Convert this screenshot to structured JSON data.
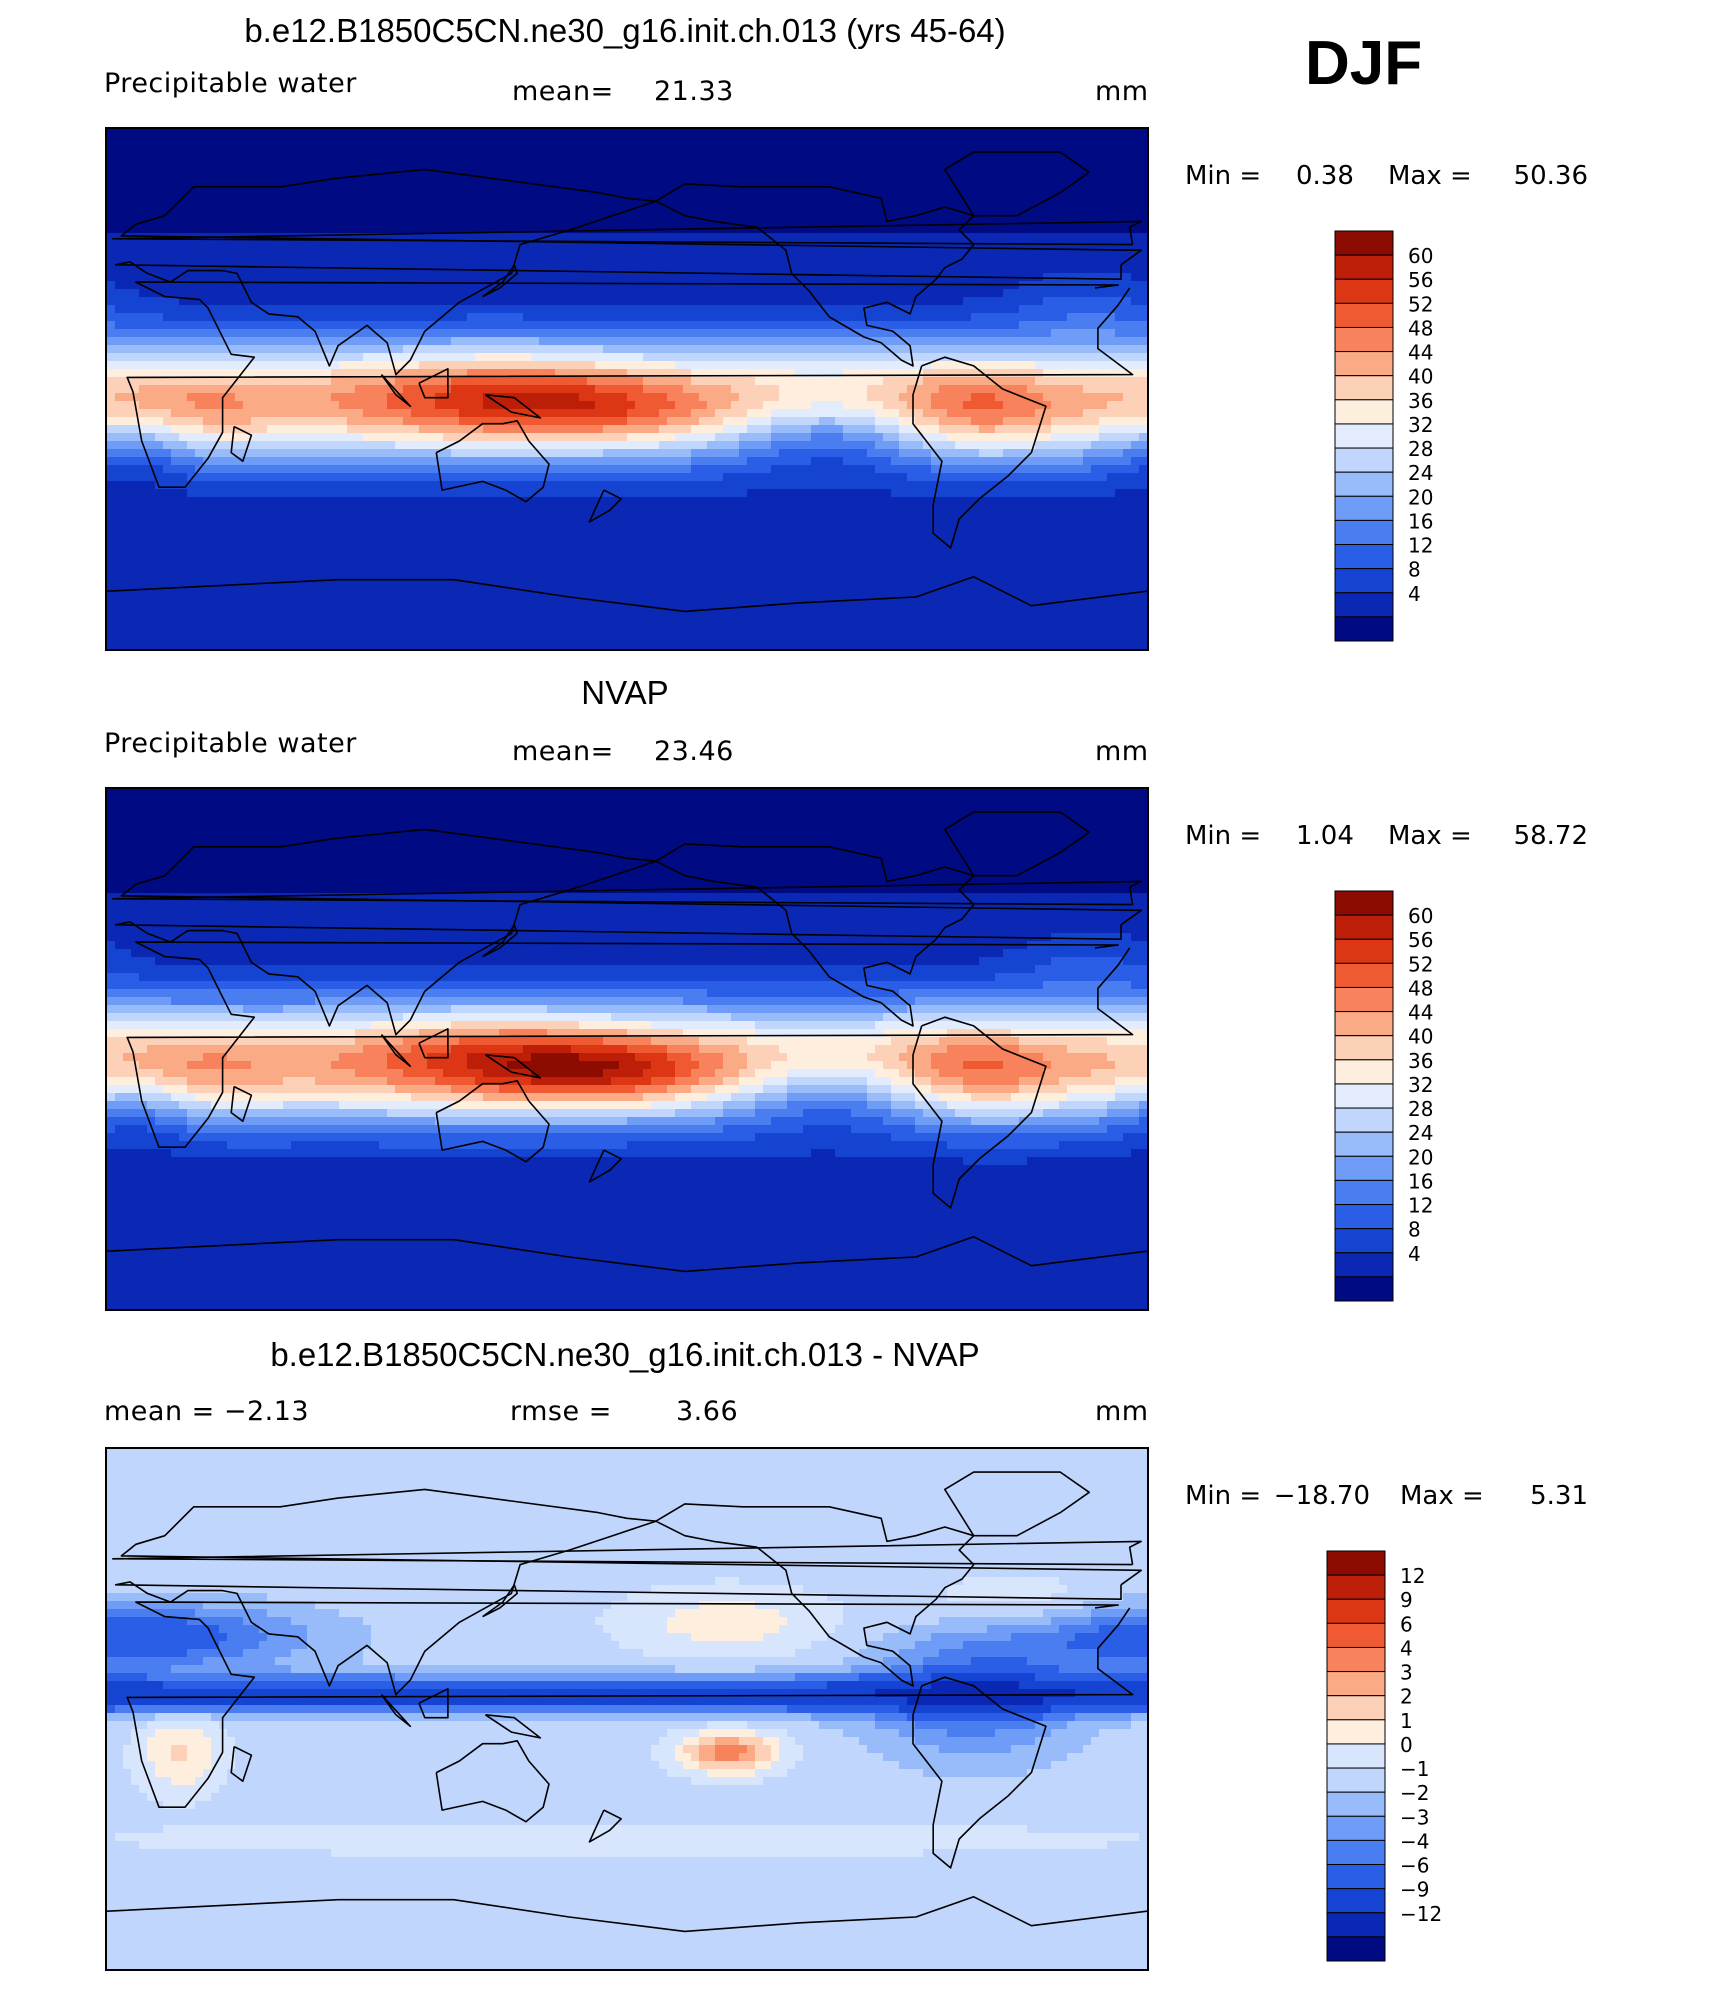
{
  "season": "DJF",
  "colors": {
    "pw_levels": [
      "#000a82",
      "#0a28b4",
      "#1644d2",
      "#2a5ee6",
      "#4a7ef0",
      "#6e9cf6",
      "#98bcfa",
      "#c0d6fc",
      "#e2ecfd",
      "#fdeede",
      "#fdd0b8",
      "#fbaa86",
      "#f7825c",
      "#ef5a32",
      "#dc3614",
      "#bc1e08",
      "#8c0c02"
    ],
    "diff_levels": [
      "#000a82",
      "#0a28b4",
      "#1644d2",
      "#2a5ee6",
      "#4a7ef0",
      "#6e9cf6",
      "#98bcfa",
      "#c0d6fc",
      "#d8e6fd",
      "#fdeede",
      "#fdd0b8",
      "#fbaa86",
      "#f7825c",
      "#ef5a32",
      "#dc3614",
      "#bc1e08",
      "#8c0c02"
    ]
  },
  "panels": [
    {
      "title": "b.e12.B1850C5CN.ne30_g16.init.ch.013 (yrs 45-64)",
      "left": "Precipitable  water",
      "center_label": "mean=",
      "center_value": "21.33",
      "units": "mm",
      "min_label": "Min  =",
      "min_value": "0.38",
      "max_label": "Max  =",
      "max_value": "50.36",
      "colorbar_labels": [
        "60",
        "56",
        "52",
        "48",
        "44",
        "40",
        "36",
        "32",
        "28",
        "24",
        "20",
        "16",
        "12",
        "8",
        "4"
      ]
    },
    {
      "title": "NVAP",
      "left": "Precipitable  water",
      "center_label": "mean=",
      "center_value": "23.46",
      "units": "mm",
      "min_label": "Min  =",
      "min_value": "1.04",
      "max_label": "Max  =",
      "max_value": "58.72",
      "colorbar_labels": [
        "60",
        "56",
        "52",
        "48",
        "44",
        "40",
        "36",
        "32",
        "28",
        "24",
        "20",
        "16",
        "12",
        "8",
        "4"
      ]
    },
    {
      "title": "b.e12.B1850C5CN.ne30_g16.init.ch.013 - NVAP",
      "left": "mean  =    −2.13",
      "center_label": "rmse  =",
      "center_value": "3.66",
      "units": "mm",
      "min_label": "Min  =",
      "min_value": "−18.70",
      "max_label": "Max  =",
      "max_value": "5.31",
      "colorbar_labels": [
        "12",
        "9",
        "6",
        "4",
        "3",
        "2",
        "1",
        "0",
        "−1",
        "−2",
        "−3",
        "−4",
        "−6",
        "−9",
        "−12"
      ]
    }
  ]
}
